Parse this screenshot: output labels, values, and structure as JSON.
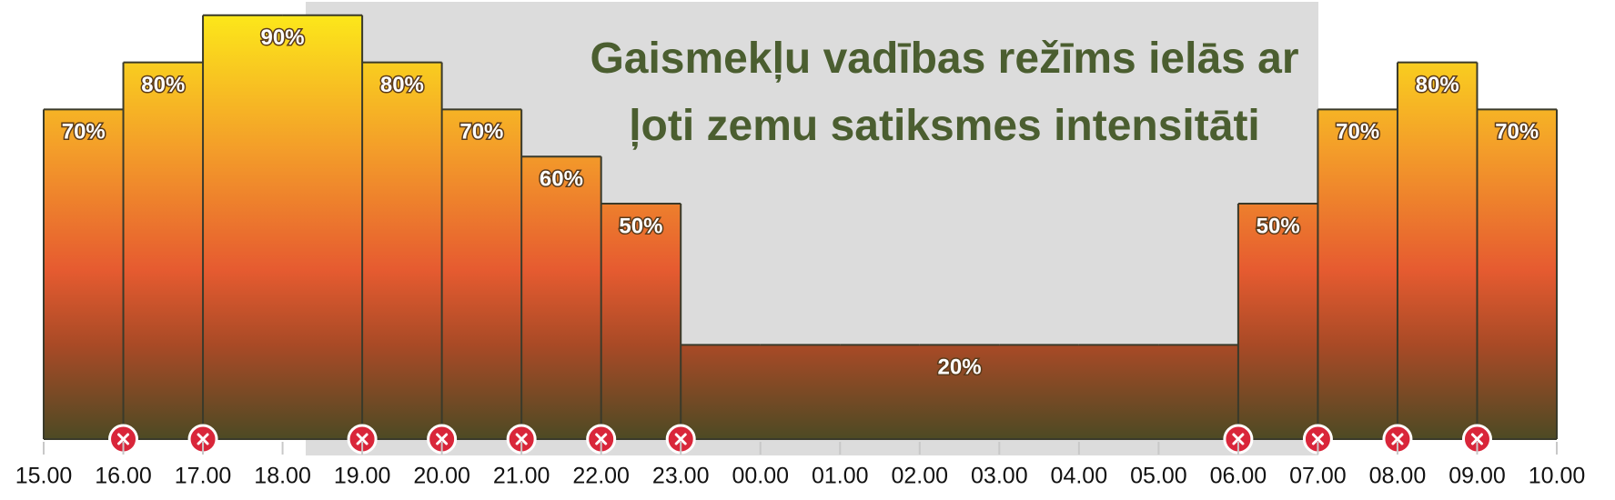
{
  "chart_data": {
    "type": "step",
    "title": "Gaismekļu vadības režīms ielās ar ļoti zemu satiksmes intensitāti",
    "x": [
      "15.00",
      "16.00",
      "17.00",
      "18.00",
      "19.00",
      "20.00",
      "21.00",
      "22.00",
      "23.00",
      "00.00",
      "01.00",
      "02.00",
      "03.00",
      "04.00",
      "05.00",
      "06.00",
      "07.00",
      "08.00",
      "09.00",
      "10.00"
    ],
    "values": [
      70,
      80,
      90,
      90,
      80,
      70,
      60,
      50,
      20,
      20,
      20,
      20,
      20,
      20,
      20,
      50,
      70,
      80,
      70,
      null
    ],
    "value_labels": [
      "70%",
      "80%",
      "90%",
      null,
      "80%",
      "70%",
      "60%",
      "50%",
      "20%",
      null,
      null,
      null,
      null,
      null,
      null,
      "50%",
      "70%",
      "80%",
      "70%",
      null
    ],
    "ylim": [
      0,
      100
    ]
  }
}
